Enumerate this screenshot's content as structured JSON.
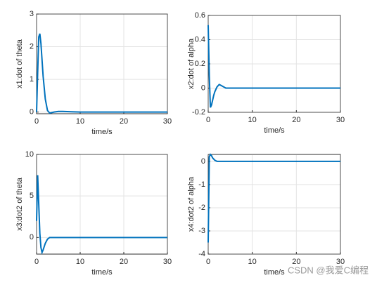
{
  "chart_data": [
    {
      "type": "line",
      "xlabel": "time/s",
      "ylabel": "x1:dot of theta",
      "color": "#0072bd",
      "grid": true,
      "x": [
        0,
        0.25,
        0.5,
        0.75,
        1,
        1.25,
        1.5,
        2,
        2.5,
        3,
        4,
        5,
        6,
        8,
        10,
        15,
        20,
        25,
        30
      ],
      "values": [
        0,
        1.2,
        2.3,
        2.4,
        2.1,
        1.6,
        1.1,
        0.4,
        0.05,
        -0.03,
        0,
        0.02,
        0.02,
        0.01,
        0,
        0,
        0,
        0,
        0
      ],
      "xlim": [
        0,
        30
      ],
      "xticks": [
        0,
        10,
        20,
        30
      ],
      "ylim": [
        -0.05,
        3
      ],
      "yticks": [
        0,
        1,
        2,
        3
      ]
    },
    {
      "type": "line",
      "xlabel": "time/s",
      "ylabel": "x2:dot of alpha",
      "color": "#0072bd",
      "grid": true,
      "x": [
        0,
        0.25,
        0.5,
        0.75,
        1,
        1.25,
        1.5,
        2,
        2.5,
        3,
        4,
        5,
        6,
        8,
        10,
        15,
        20,
        25,
        30
      ],
      "values": [
        0.52,
        0.1,
        -0.16,
        -0.14,
        -0.1,
        -0.06,
        -0.03,
        0.01,
        0.03,
        0.02,
        0,
        0,
        0,
        0,
        0,
        0,
        0,
        0,
        0
      ],
      "xlim": [
        0,
        30
      ],
      "xticks": [
        0,
        10,
        20,
        30
      ],
      "ylim": [
        -0.2,
        0.6
      ],
      "yticks": [
        -0.2,
        0,
        0.2,
        0.4,
        0.6
      ]
    },
    {
      "type": "line",
      "xlabel": "time/s",
      "ylabel": "x3:dot2 of theta",
      "color": "#0072bd",
      "grid": true,
      "x": [
        0,
        0.25,
        0.5,
        0.75,
        1,
        1.25,
        1.5,
        2,
        2.5,
        3,
        4,
        5,
        6,
        8,
        10,
        15,
        20,
        25,
        30
      ],
      "values": [
        2,
        7.5,
        4,
        0.5,
        -1.2,
        -1.8,
        -1.5,
        -0.7,
        -0.2,
        0,
        0,
        0,
        0,
        0,
        0,
        0,
        0,
        0,
        0
      ],
      "xlim": [
        0,
        30
      ],
      "xticks": [
        0,
        10,
        20,
        30
      ],
      "ylim": [
        -2,
        10
      ],
      "yticks": [
        0,
        5,
        10
      ]
    },
    {
      "type": "line",
      "xlabel": "time/s",
      "ylabel": "x4:dot2 of alpha",
      "color": "#0072bd",
      "grid": true,
      "x": [
        0,
        0.25,
        0.5,
        0.75,
        1,
        1.25,
        1.5,
        2,
        2.5,
        3,
        4,
        5,
        6,
        8,
        10,
        15,
        20,
        25,
        30
      ],
      "values": [
        -3.5,
        0.2,
        0.3,
        0.25,
        0.15,
        0.1,
        0.05,
        0,
        0,
        0,
        0,
        0,
        0,
        0,
        0,
        0,
        0,
        0,
        0
      ],
      "xlim": [
        0,
        30
      ],
      "xticks": [
        0,
        10,
        20,
        30
      ],
      "ylim": [
        -4,
        0.3
      ],
      "yticks": [
        -4,
        -3,
        -2,
        -1,
        0
      ]
    }
  ],
  "watermark": "CSDN @我爱C编程"
}
